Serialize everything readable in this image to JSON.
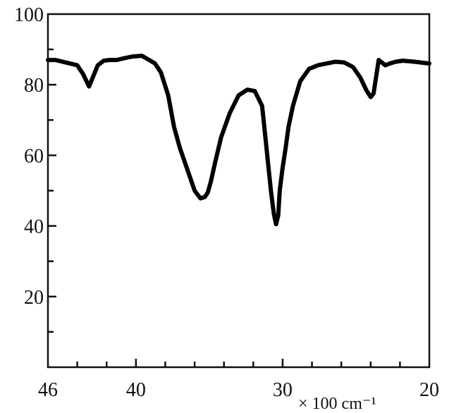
{
  "chart_data": {
    "type": "line",
    "title": "",
    "xlabel": "× 100 cm⁻¹",
    "ylabel": "",
    "xlim": [
      46,
      20
    ],
    "ylim": [
      0,
      100
    ],
    "x_reversed": true,
    "grid": false,
    "legend": "none",
    "x_ticks": [
      46,
      40,
      30,
      20
    ],
    "x_tick_labels": [
      "46",
      "40",
      "30",
      "20"
    ],
    "x_minor_ticks": [
      44,
      42,
      38,
      36,
      34,
      32,
      28,
      26,
      24,
      22
    ],
    "y_ticks": [
      20,
      40,
      60,
      80,
      100
    ],
    "y_tick_labels": [
      "20",
      "40",
      "60",
      "80",
      "100"
    ],
    "y_minor_ticks": [
      10,
      30,
      50,
      70,
      90
    ],
    "line_color": "#000000",
    "series": [
      {
        "x": [
          46.0,
          45.5,
          45.0,
          44.5,
          44.0,
          43.6,
          43.2,
          42.9,
          42.6,
          42.2,
          41.8,
          41.3,
          40.8,
          40.2,
          39.6,
          39.1,
          38.7,
          38.3,
          37.8,
          37.4,
          37.0,
          36.5,
          36.0,
          35.6,
          35.3,
          35.1,
          34.9,
          34.6,
          34.2,
          33.6,
          33.0,
          32.4,
          31.9,
          31.4,
          31.2,
          31.0,
          30.8,
          30.6,
          30.45,
          30.3,
          30.2,
          30.0,
          29.8,
          29.6,
          29.3,
          28.8,
          28.2,
          27.6,
          27.0,
          26.4,
          25.8,
          25.2,
          24.7,
          24.3,
          24.0,
          23.8,
          23.6,
          23.45,
          23.3,
          23.0,
          22.7,
          22.3,
          21.8,
          21.0,
          20.4,
          20.0
        ],
        "y": [
          87.0,
          87.0,
          86.5,
          86.0,
          85.5,
          83.0,
          79.5,
          82.5,
          85.5,
          86.8,
          87.0,
          87.0,
          87.5,
          88.0,
          88.2,
          87.0,
          86.0,
          83.5,
          77.0,
          68.0,
          62.0,
          56.0,
          50.0,
          47.8,
          48.2,
          49.5,
          52.5,
          58.0,
          65.0,
          72.0,
          77.0,
          78.6,
          78.2,
          74.0,
          66.0,
          58.0,
          50.0,
          43.5,
          40.5,
          43.0,
          50.0,
          56.5,
          62.0,
          68.0,
          74.0,
          81.0,
          84.5,
          85.5,
          86.0,
          86.5,
          86.3,
          85.0,
          82.0,
          78.5,
          76.5,
          77.5,
          83.0,
          87.0,
          86.5,
          85.5,
          86.0,
          86.5,
          86.8,
          86.5,
          86.2,
          86.0
        ]
      }
    ]
  }
}
